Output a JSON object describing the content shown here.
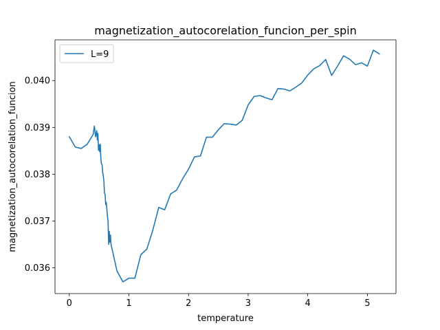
{
  "chart_data": {
    "type": "line",
    "title": "magnetization_autocorelation_funcion_per_spin",
    "xlabel": "temperature",
    "ylabel": "magnetization_autocorelation_funcion",
    "xlim": [
      -0.24,
      5.48
    ],
    "ylim": [
      0.03545,
      0.04087
    ],
    "xticks": [
      0,
      1,
      2,
      3,
      4,
      5
    ],
    "xtick_labels": [
      "0",
      "1",
      "2",
      "3",
      "4",
      "5"
    ],
    "yticks": [
      0.036,
      0.037,
      0.038,
      0.039,
      0.04
    ],
    "ytick_labels": [
      "0.036",
      "0.037",
      "0.038",
      "0.039",
      "0.040"
    ],
    "grid": false,
    "legend": {
      "position": "top-left",
      "entries": [
        "L=9"
      ]
    },
    "series": [
      {
        "name": "L=9",
        "color": "#1f77b4",
        "x": [
          0.0,
          0.1,
          0.2,
          0.3,
          0.4,
          0.42,
          0.44,
          0.46,
          0.47,
          0.48,
          0.49,
          0.5,
          0.51,
          0.52,
          0.53,
          0.54,
          0.55,
          0.56,
          0.57,
          0.58,
          0.59,
          0.6,
          0.61,
          0.62,
          0.63,
          0.64,
          0.65,
          0.66,
          0.67,
          0.68,
          0.69,
          0.7,
          0.8,
          0.9,
          1.0,
          1.1,
          1.2,
          1.3,
          1.4,
          1.5,
          1.6,
          1.7,
          1.8,
          1.9,
          2.0,
          2.1,
          2.2,
          2.3,
          2.4,
          2.5,
          2.6,
          2.7,
          2.8,
          2.9,
          3.0,
          3.1,
          3.2,
          3.3,
          3.4,
          3.5,
          3.6,
          3.7,
          3.8,
          3.9,
          4.0,
          4.1,
          4.2,
          4.3,
          4.4,
          4.5,
          4.6,
          4.7,
          4.8,
          4.9,
          5.0,
          5.1,
          5.2
        ],
        "y": [
          0.0388,
          0.03858,
          0.03855,
          0.03864,
          0.03885,
          0.03903,
          0.0388,
          0.03893,
          0.03873,
          0.03887,
          0.03851,
          0.03863,
          0.03848,
          0.03864,
          0.03831,
          0.03822,
          0.0382,
          0.03803,
          0.03797,
          0.03785,
          0.0376,
          0.03757,
          0.03735,
          0.0374,
          0.03726,
          0.0371,
          0.03699,
          0.0365,
          0.03678,
          0.03655,
          0.0367,
          0.0365,
          0.03593,
          0.0357,
          0.03578,
          0.03578,
          0.03628,
          0.0364,
          0.0368,
          0.03729,
          0.03724,
          0.03758,
          0.03766,
          0.0379,
          0.03811,
          0.03837,
          0.03839,
          0.03879,
          0.03879,
          0.03895,
          0.03908,
          0.03907,
          0.03905,
          0.03915,
          0.03948,
          0.03966,
          0.03968,
          0.03963,
          0.03959,
          0.03983,
          0.03982,
          0.03978,
          0.03986,
          0.03995,
          0.04012,
          0.04025,
          0.04032,
          0.04045,
          0.04011,
          0.04031,
          0.04053,
          0.04046,
          0.04034,
          0.04038,
          0.04031,
          0.04065,
          0.04057
        ]
      }
    ]
  }
}
